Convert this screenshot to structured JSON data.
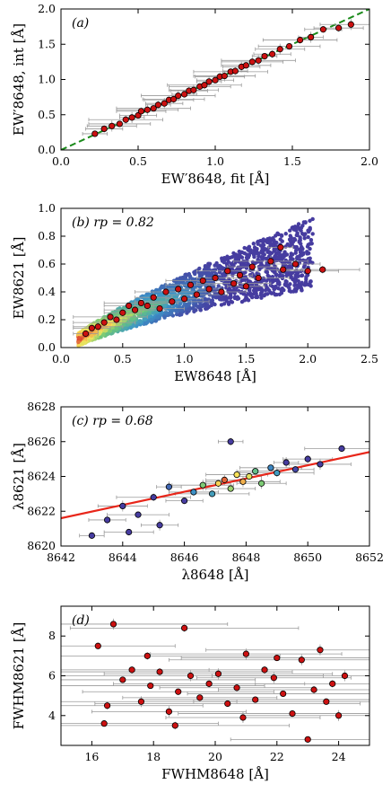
{
  "chart_data": [
    {
      "type": "scatter",
      "annotation": "(a)",
      "xlabel": "EW′8648, fit [Å]",
      "ylabel": "EW′8648, int [Å]",
      "xlim": [
        0,
        2
      ],
      "ylim": [
        0,
        2
      ],
      "xticks": [
        "0.0",
        "0.5",
        "1.0",
        "1.5",
        "2.0"
      ],
      "yticks": [
        "0.0",
        "0.5",
        "1.0",
        "1.5",
        "2.0"
      ],
      "reference_line": {
        "style": "dashed",
        "color": "#1a8a1a",
        "from": [
          0,
          0
        ],
        "to": [
          2,
          2
        ]
      },
      "series": [
        {
          "color": "#cc1111",
          "error_bars": "x and y, gray",
          "points": [
            [
              0.22,
              0.23
            ],
            [
              0.28,
              0.3
            ],
            [
              0.33,
              0.34
            ],
            [
              0.38,
              0.37
            ],
            [
              0.42,
              0.43
            ],
            [
              0.46,
              0.46
            ],
            [
              0.5,
              0.49
            ],
            [
              0.52,
              0.55
            ],
            [
              0.56,
              0.57
            ],
            [
              0.6,
              0.59
            ],
            [
              0.63,
              0.64
            ],
            [
              0.67,
              0.66
            ],
            [
              0.7,
              0.71
            ],
            [
              0.73,
              0.72
            ],
            [
              0.76,
              0.77
            ],
            [
              0.8,
              0.79
            ],
            [
              0.83,
              0.84
            ],
            [
              0.86,
              0.85
            ],
            [
              0.9,
              0.9
            ],
            [
              0.93,
              0.92
            ],
            [
              0.96,
              0.97
            ],
            [
              1.0,
              0.99
            ],
            [
              1.03,
              1.04
            ],
            [
              1.06,
              1.05
            ],
            [
              1.1,
              1.11
            ],
            [
              1.13,
              1.12
            ],
            [
              1.17,
              1.18
            ],
            [
              1.2,
              1.2
            ],
            [
              1.24,
              1.25
            ],
            [
              1.28,
              1.27
            ],
            [
              1.32,
              1.33
            ],
            [
              1.37,
              1.36
            ],
            [
              1.42,
              1.43
            ],
            [
              1.48,
              1.47
            ],
            [
              1.55,
              1.56
            ],
            [
              1.62,
              1.6
            ],
            [
              1.7,
              1.71
            ],
            [
              1.8,
              1.73
            ],
            [
              1.88,
              1.78
            ]
          ]
        }
      ]
    },
    {
      "type": "scatter",
      "annotation": "(b) rp = 0.82",
      "xlabel": "EW8648 [Å]",
      "ylabel": "EW8621 [Å]",
      "xlim": [
        0,
        2.5
      ],
      "ylim": [
        0,
        1.0
      ],
      "xticks": [
        "0.0",
        "0.5",
        "1.0",
        "1.5",
        "2.0",
        "2.5"
      ],
      "yticks": [
        "0.0",
        "0.2",
        "0.4",
        "0.6",
        "0.8",
        "1.0"
      ],
      "background_density": "colored density cloud (blue→green→yellow→red)",
      "series": [
        {
          "color": "#cc1111",
          "error_bars": "x and y, gray",
          "points": [
            [
              0.2,
              0.1
            ],
            [
              0.25,
              0.14
            ],
            [
              0.3,
              0.15
            ],
            [
              0.35,
              0.18
            ],
            [
              0.4,
              0.22
            ],
            [
              0.45,
              0.2
            ],
            [
              0.5,
              0.25
            ],
            [
              0.55,
              0.3
            ],
            [
              0.6,
              0.27
            ],
            [
              0.65,
              0.32
            ],
            [
              0.7,
              0.3
            ],
            [
              0.75,
              0.36
            ],
            [
              0.8,
              0.28
            ],
            [
              0.85,
              0.4
            ],
            [
              0.9,
              0.33
            ],
            [
              0.95,
              0.42
            ],
            [
              1.0,
              0.35
            ],
            [
              1.05,
              0.45
            ],
            [
              1.1,
              0.38
            ],
            [
              1.15,
              0.48
            ],
            [
              1.2,
              0.42
            ],
            [
              1.25,
              0.5
            ],
            [
              1.3,
              0.4
            ],
            [
              1.35,
              0.55
            ],
            [
              1.4,
              0.46
            ],
            [
              1.45,
              0.52
            ],
            [
              1.5,
              0.44
            ],
            [
              1.55,
              0.58
            ],
            [
              1.6,
              0.5
            ],
            [
              1.7,
              0.62
            ],
            [
              1.78,
              0.72
            ],
            [
              1.8,
              0.56
            ],
            [
              1.9,
              0.6
            ],
            [
              2.0,
              0.55
            ],
            [
              2.12,
              0.56
            ]
          ]
        }
      ]
    },
    {
      "type": "scatter",
      "annotation": "(c) rp = 0.68",
      "xlabel": "λ8648 [Å]",
      "ylabel": "λ8621 [Å]",
      "xlim": [
        8642,
        8652
      ],
      "ylim": [
        8620,
        8628
      ],
      "xticks": [
        "8642",
        "8644",
        "8646",
        "8648",
        "8650",
        "8652"
      ],
      "yticks": [
        "8620",
        "8622",
        "8624",
        "8626",
        "8628"
      ],
      "fit_line": {
        "color": "#e8261a",
        "from": [
          8642,
          8621.6
        ],
        "to": [
          8652,
          8625.4
        ]
      },
      "series": [
        {
          "colormap": "density (blue→green→yellow→red)",
          "error_bars": "x and y, gray",
          "points": [
            [
              8643.0,
              8620.6
            ],
            [
              8643.5,
              8621.5
            ],
            [
              8644.0,
              8622.3
            ],
            [
              8644.5,
              8621.8
            ],
            [
              8645.0,
              8622.8
            ],
            [
              8645.5,
              8623.4
            ],
            [
              8646.0,
              8622.6
            ],
            [
              8646.3,
              8623.1
            ],
            [
              8646.6,
              8623.5
            ],
            [
              8646.9,
              8623.0
            ],
            [
              8647.1,
              8623.6
            ],
            [
              8647.3,
              8623.8
            ],
            [
              8647.5,
              8623.3
            ],
            [
              8647.7,
              8624.1
            ],
            [
              8647.9,
              8623.7
            ],
            [
              8648.1,
              8624.0
            ],
            [
              8648.3,
              8624.3
            ],
            [
              8648.5,
              8623.6
            ],
            [
              8648.8,
              8624.5
            ],
            [
              8649.0,
              8624.2
            ],
            [
              8649.3,
              8624.8
            ],
            [
              8649.6,
              8624.4
            ],
            [
              8650.0,
              8625.0
            ],
            [
              8650.4,
              8624.7
            ],
            [
              8651.1,
              8625.6
            ],
            [
              8647.5,
              8626.0
            ],
            [
              8645.2,
              8621.2
            ],
            [
              8644.2,
              8620.8
            ]
          ]
        }
      ]
    },
    {
      "type": "scatter",
      "annotation": "(d)",
      "xlabel": "FWHM8648 [Å]",
      "ylabel": "FWHM8621 [Å]",
      "xlim": [
        15,
        25
      ],
      "ylim": [
        2.5,
        9.5
      ],
      "xticks": [
        "16",
        "18",
        "20",
        "22",
        "24"
      ],
      "yticks": [
        "4",
        "6",
        "8"
      ],
      "series": [
        {
          "color": "#cc1111",
          "error_bars": "x and y, gray",
          "points": [
            [
              16.2,
              7.5
            ],
            [
              16.5,
              4.5
            ],
            [
              16.7,
              8.6
            ],
            [
              17.0,
              5.8
            ],
            [
              17.3,
              6.3
            ],
            [
              17.6,
              4.7
            ],
            [
              17.9,
              5.5
            ],
            [
              18.2,
              6.2
            ],
            [
              18.5,
              4.2
            ],
            [
              18.8,
              5.2
            ],
            [
              19.0,
              8.4
            ],
            [
              19.2,
              6.0
            ],
            [
              19.5,
              4.9
            ],
            [
              19.8,
              5.6
            ],
            [
              20.1,
              6.1
            ],
            [
              20.4,
              4.6
            ],
            [
              20.7,
              5.4
            ],
            [
              21.0,
              7.1
            ],
            [
              21.3,
              4.8
            ],
            [
              21.6,
              6.3
            ],
            [
              21.9,
              5.9
            ],
            [
              22.2,
              5.1
            ],
            [
              22.5,
              4.1
            ],
            [
              22.8,
              6.8
            ],
            [
              23.0,
              2.8
            ],
            [
              23.2,
              5.3
            ],
            [
              23.4,
              7.3
            ],
            [
              23.6,
              4.7
            ],
            [
              23.8,
              5.6
            ],
            [
              24.0,
              4.0
            ],
            [
              16.4,
              3.6
            ],
            [
              17.8,
              7.0
            ],
            [
              20.9,
              3.9
            ],
            [
              22.0,
              6.9
            ],
            [
              18.7,
              3.5
            ],
            [
              24.2,
              6.0
            ]
          ]
        }
      ]
    }
  ]
}
